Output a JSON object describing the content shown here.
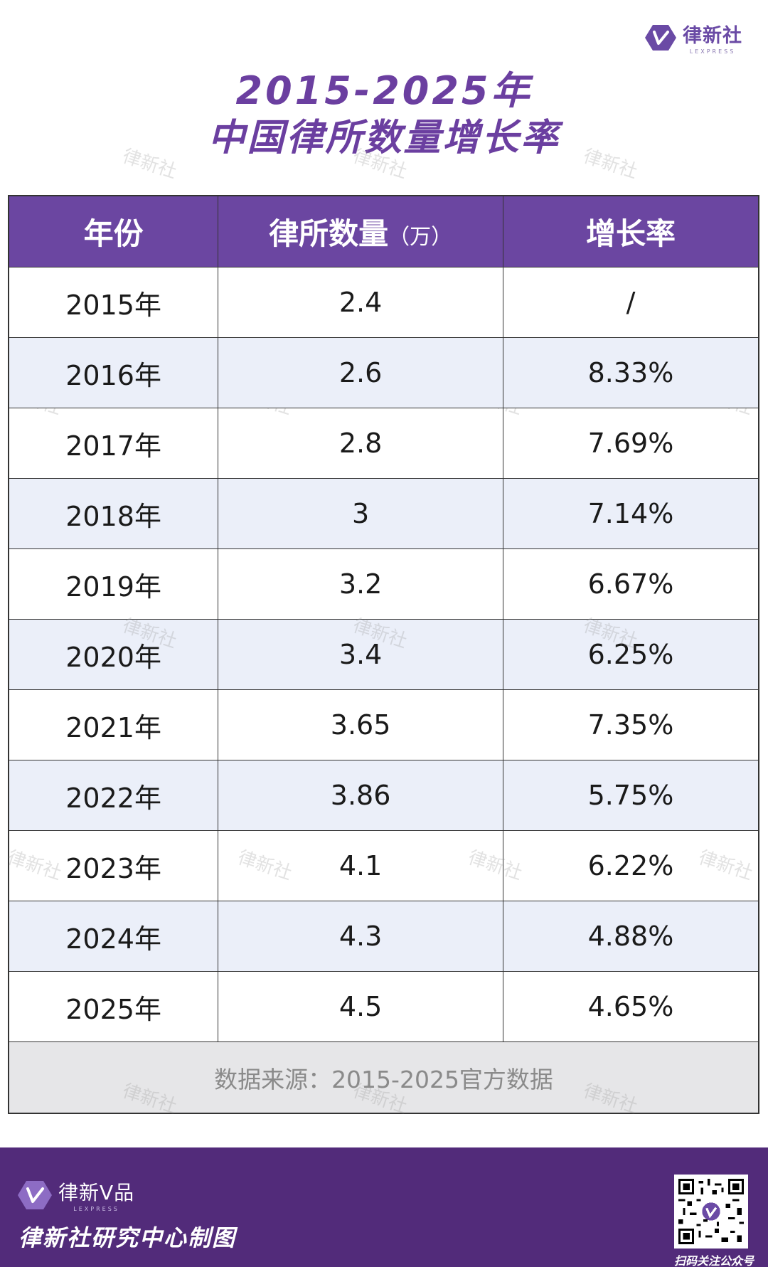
{
  "logo": {
    "name": "律新社",
    "en": "LEXPRESS",
    "color": "#6a4aa5"
  },
  "title": {
    "line1": "2015-2025年",
    "line2": "中国律所数量增长率"
  },
  "watermark_text": "律新社",
  "table": {
    "headers": {
      "year": "年份",
      "count": "律所数量",
      "count_unit": "（万）",
      "rate": "增长率"
    },
    "rows": [
      {
        "year": "2015年",
        "count": "2.4",
        "rate": "/"
      },
      {
        "year": "2016年",
        "count": "2.6",
        "rate": "8.33%"
      },
      {
        "year": "2017年",
        "count": "2.8",
        "rate": "7.69%"
      },
      {
        "year": "2018年",
        "count": "3",
        "rate": "7.14%"
      },
      {
        "year": "2019年",
        "count": "3.2",
        "rate": "6.67%"
      },
      {
        "year": "2020年",
        "count": "3.4",
        "rate": "6.25%"
      },
      {
        "year": "2021年",
        "count": "3.65",
        "rate": "7.35%"
      },
      {
        "year": "2022年",
        "count": "3.86",
        "rate": "5.75%"
      },
      {
        "year": "2023年",
        "count": "4.1",
        "rate": "6.22%"
      },
      {
        "year": "2024年",
        "count": "4.3",
        "rate": "4.88%"
      },
      {
        "year": "2025年",
        "count": "4.5",
        "rate": "4.65%"
      }
    ],
    "source": "数据来源：2015-2025官方数据"
  },
  "footer": {
    "brand": "律新V品",
    "brand_en": "LEXPRESS",
    "credit": "律新社研究中心制图",
    "qr_caption": "扫码关注公众号",
    "background": "#522b7a"
  },
  "colors": {
    "header_bg": "#6b46a1",
    "alt_row_bg": "#ebeff9",
    "title": "#6b3fa0"
  }
}
